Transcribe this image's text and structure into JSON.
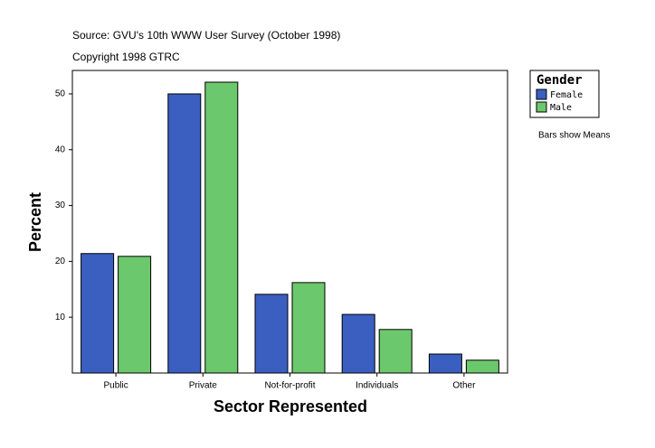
{
  "chart_data": {
    "type": "bar",
    "title": "Source: GVU's 10th WWW User Survey (October 1998)",
    "subtitle": "Copyright 1998 GTRC",
    "x_label": "Sector Represented",
    "y_label": "Percent",
    "legend_title": "Gender",
    "note": "Bars show Means",
    "categories": [
      "Public",
      "Private",
      "Not-for-profit",
      "Individuals",
      "Other"
    ],
    "series": [
      {
        "name": "Female",
        "color": "#3a5fc0",
        "values": [
          21.4,
          50.0,
          14.1,
          10.5,
          3.4
        ]
      },
      {
        "name": "Male",
        "color": "#6cc86c",
        "values": [
          20.9,
          52.1,
          16.2,
          7.8,
          2.3
        ]
      }
    ],
    "ylim": [
      0,
      54.2
    ],
    "yticks": [
      10,
      20,
      30,
      40,
      50
    ],
    "legend": "right"
  }
}
